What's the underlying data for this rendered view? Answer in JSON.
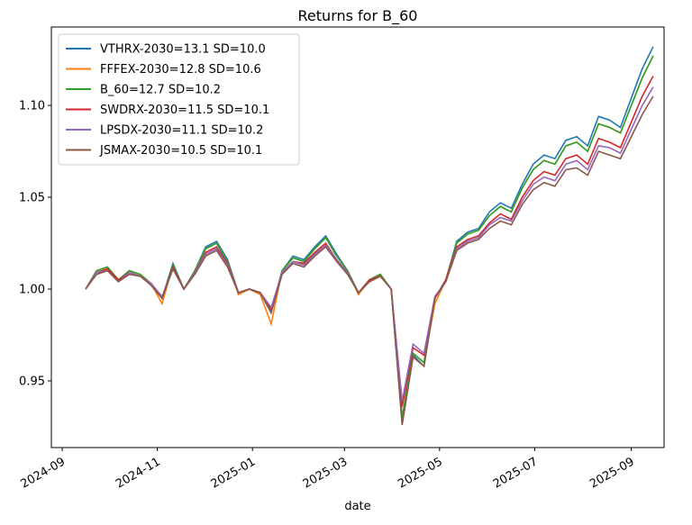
{
  "chart_data": {
    "type": "line",
    "title": "Returns for B_60",
    "x_label": "date",
    "x": [
      "2024-09-16",
      "2024-09-23",
      "2024-09-30",
      "2024-10-07",
      "2024-10-14",
      "2024-10-21",
      "2024-10-28",
      "2024-11-04",
      "2024-11-11",
      "2024-11-18",
      "2024-11-25",
      "2024-12-02",
      "2024-12-09",
      "2024-12-16",
      "2024-12-23",
      "2024-12-30",
      "2025-01-06",
      "2025-01-13",
      "2025-01-20",
      "2025-01-27",
      "2025-02-03",
      "2025-02-10",
      "2025-02-17",
      "2025-02-24",
      "2025-03-03",
      "2025-03-10",
      "2025-03-17",
      "2025-03-24",
      "2025-03-31",
      "2025-04-07",
      "2025-04-14",
      "2025-04-21",
      "2025-04-28",
      "2025-05-05",
      "2025-05-12",
      "2025-05-19",
      "2025-05-26",
      "2025-06-02",
      "2025-06-09",
      "2025-06-16",
      "2025-06-23",
      "2025-06-30",
      "2025-07-07",
      "2025-07-14",
      "2025-07-21",
      "2025-07-28",
      "2025-08-04",
      "2025-08-11",
      "2025-08-18",
      "2025-08-25",
      "2025-09-01",
      "2025-09-08",
      "2025-09-15"
    ],
    "series": [
      {
        "name": "VTHRX-2030=13.1 SD=10.0",
        "color": "#1f77b4",
        "values": [
          1.0,
          1.01,
          1.012,
          1.005,
          1.01,
          1.008,
          1.003,
          0.995,
          1.014,
          1.0,
          1.01,
          1.023,
          1.026,
          1.016,
          0.998,
          1.0,
          0.998,
          0.988,
          1.01,
          1.018,
          1.016,
          1.023,
          1.029,
          1.019,
          1.01,
          0.998,
          1.005,
          1.008,
          1.0,
          0.927,
          0.964,
          0.958,
          0.995,
          1.005,
          1.026,
          1.031,
          1.033,
          1.042,
          1.047,
          1.044,
          1.057,
          1.068,
          1.073,
          1.071,
          1.081,
          1.083,
          1.078,
          1.094,
          1.092,
          1.088,
          1.104,
          1.12,
          1.132
        ]
      },
      {
        "name": "FFFEX-2030=12.8 SD=10.6",
        "color": "#ff7f0e",
        "values": [
          1.0,
          1.01,
          1.012,
          1.005,
          1.01,
          1.008,
          1.003,
          0.992,
          1.013,
          1.0,
          1.01,
          1.022,
          1.025,
          1.015,
          0.997,
          1.0,
          0.997,
          0.981,
          1.01,
          1.017,
          1.015,
          1.022,
          1.028,
          1.018,
          1.01,
          0.997,
          1.005,
          1.008,
          1.0,
          0.93,
          0.965,
          0.96,
          0.992,
          1.005,
          1.025,
          1.03,
          1.032,
          1.04,
          1.045,
          1.042,
          1.055,
          1.065,
          1.07,
          1.068,
          1.078,
          1.08,
          1.075,
          1.09,
          1.088,
          1.085,
          1.1,
          1.115,
          1.127
        ]
      },
      {
        "name": "B_60=12.7 SD=10.2",
        "color": "#2ca02c",
        "values": [
          1.0,
          1.01,
          1.012,
          1.005,
          1.01,
          1.008,
          1.003,
          0.995,
          1.013,
          1.0,
          1.01,
          1.022,
          1.025,
          1.015,
          0.998,
          1.0,
          0.998,
          0.988,
          1.01,
          1.017,
          1.015,
          1.022,
          1.028,
          1.018,
          1.01,
          0.998,
          1.005,
          1.008,
          1.0,
          0.93,
          0.965,
          0.96,
          0.995,
          1.005,
          1.025,
          1.03,
          1.032,
          1.04,
          1.045,
          1.042,
          1.055,
          1.065,
          1.07,
          1.068,
          1.078,
          1.08,
          1.075,
          1.09,
          1.088,
          1.085,
          1.1,
          1.115,
          1.127
        ]
      },
      {
        "name": "SWDRX-2030=11.5 SD=10.1",
        "color": "#d62728",
        "values": [
          1.0,
          1.009,
          1.011,
          1.005,
          1.009,
          1.007,
          1.003,
          0.995,
          1.012,
          1.0,
          1.009,
          1.02,
          1.023,
          1.014,
          0.998,
          1.0,
          0.998,
          0.989,
          1.009,
          1.015,
          1.014,
          1.02,
          1.025,
          1.016,
          1.009,
          0.998,
          1.005,
          1.007,
          1.0,
          0.936,
          0.968,
          0.964,
          0.995,
          1.005,
          1.023,
          1.027,
          1.029,
          1.036,
          1.041,
          1.038,
          1.05,
          1.059,
          1.064,
          1.062,
          1.071,
          1.073,
          1.068,
          1.082,
          1.08,
          1.077,
          1.091,
          1.105,
          1.116
        ]
      },
      {
        "name": "LPSDX-2030=11.1 SD=10.2",
        "color": "#9467bd",
        "values": [
          1.0,
          1.009,
          1.01,
          1.004,
          1.009,
          1.007,
          1.003,
          0.996,
          1.011,
          1.0,
          1.009,
          1.019,
          1.022,
          1.013,
          0.998,
          1.0,
          0.998,
          0.99,
          1.009,
          1.015,
          1.013,
          1.019,
          1.024,
          1.016,
          1.009,
          0.998,
          1.004,
          1.007,
          1.0,
          0.939,
          0.97,
          0.965,
          0.996,
          1.004,
          1.022,
          1.026,
          1.028,
          1.035,
          1.039,
          1.037,
          1.048,
          1.057,
          1.061,
          1.059,
          1.068,
          1.07,
          1.065,
          1.078,
          1.077,
          1.074,
          1.087,
          1.1,
          1.11
        ]
      },
      {
        "name": "JSMAX-2030=10.5 SD=10.1",
        "color": "#8c564b",
        "values": [
          1.0,
          1.008,
          1.01,
          1.004,
          1.008,
          1.007,
          1.002,
          0.995,
          1.011,
          1.0,
          1.008,
          1.018,
          1.021,
          1.012,
          0.998,
          1.0,
          0.998,
          0.987,
          1.008,
          1.014,
          1.012,
          1.018,
          1.023,
          1.015,
          1.008,
          0.998,
          1.004,
          1.007,
          1.0,
          0.926,
          0.963,
          0.958,
          0.995,
          1.004,
          1.021,
          1.025,
          1.027,
          1.033,
          1.037,
          1.035,
          1.046,
          1.054,
          1.058,
          1.056,
          1.065,
          1.066,
          1.062,
          1.075,
          1.073,
          1.071,
          1.083,
          1.095,
          1.105
        ]
      }
    ],
    "xlim": [
      "2024-08-25",
      "2025-09-22"
    ],
    "xticks": [
      "2024-09",
      "2024-11",
      "2025-01",
      "2025-03",
      "2025-05",
      "2025-07",
      "2025-09"
    ],
    "ylim": [
      0.9137,
      1.1427
    ],
    "yticks": [
      0.95,
      {
        "value": 1.0,
        "label": "1.00"
      },
      1.05,
      {
        "value": 1.1,
        "label": "1.10"
      }
    ],
    "legend": "upper left",
    "grid": false
  }
}
